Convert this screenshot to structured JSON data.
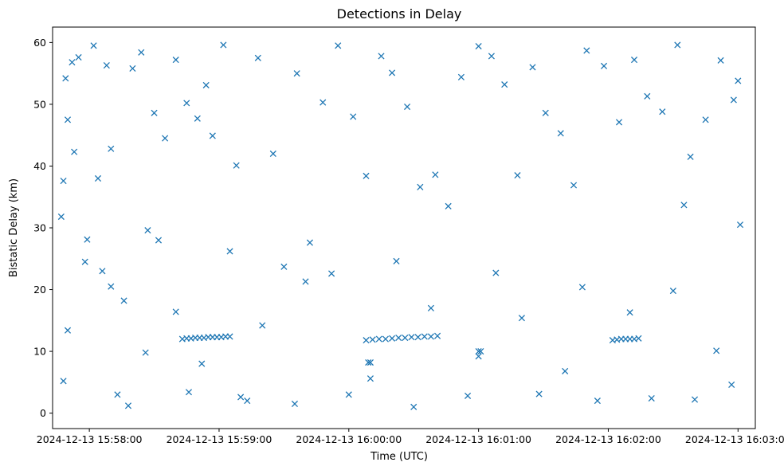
{
  "chart_data": {
    "type": "scatter",
    "title": "Detections in Delay",
    "xlabel": "Time (UTC)",
    "ylabel": "Bistatic Delay (km)",
    "x_axis_type": "datetime",
    "xlim": [
      "2024-12-13 15:57:43",
      "2024-12-13 16:03:08"
    ],
    "ylim": [
      -2.5,
      62.5
    ],
    "x_ticks": [
      "2024-12-13 15:58:00",
      "2024-12-13 15:59:00",
      "2024-12-13 16:00:00",
      "2024-12-13 16:01:00",
      "2024-12-13 16:02:00",
      "2024-12-13 16:03:00"
    ],
    "y_ticks": [
      0,
      10,
      20,
      30,
      40,
      50,
      60
    ],
    "marker": "x",
    "marker_color": "#1f77b4",
    "grid": false,
    "legend": "none",
    "series": [
      {
        "x": [
          "2024-12-13 15:57:47",
          "2024-12-13 15:57:48",
          "2024-12-13 15:57:48",
          "2024-12-13 15:57:49",
          "2024-12-13 15:57:50",
          "2024-12-13 15:57:52",
          "2024-12-13 15:57:53",
          "2024-12-13 15:57:55",
          "2024-12-13 15:57:58",
          "2024-12-13 15:57:59",
          "2024-12-13 15:58:02",
          "2024-12-13 15:58:04",
          "2024-12-13 15:58:06",
          "2024-12-13 15:58:08",
          "2024-12-13 15:58:10",
          "2024-12-13 15:58:13",
          "2024-12-13 15:58:16",
          "2024-12-13 15:58:20",
          "2024-12-13 15:58:24",
          "2024-12-13 15:58:27",
          "2024-12-13 15:58:30",
          "2024-12-13 15:58:35",
          "2024-12-13 15:58:40",
          "2024-12-13 15:58:45",
          "2024-12-13 15:58:50",
          "2024-12-13 15:58:54",
          "2024-12-13 15:58:57",
          "2024-12-13 15:59:02",
          "2024-12-13 15:59:08",
          "2024-12-13 15:59:13",
          "2024-12-13 15:59:18",
          "2024-12-13 15:59:25",
          "2024-12-13 15:59:30",
          "2024-12-13 15:59:36",
          "2024-12-13 15:59:42",
          "2024-12-13 15:59:48",
          "2024-12-13 15:59:55",
          "2024-12-13 16:00:02",
          "2024-12-13 16:00:08",
          "2024-12-13 16:00:15",
          "2024-12-13 16:00:20",
          "2024-12-13 16:00:27",
          "2024-12-13 16:00:33",
          "2024-12-13 16:00:40",
          "2024-12-13 16:00:46",
          "2024-12-13 16:00:52",
          "2024-12-13 16:01:00",
          "2024-12-13 16:01:06",
          "2024-12-13 16:01:12",
          "2024-12-13 16:01:18",
          "2024-12-13 16:01:25",
          "2024-12-13 16:01:31",
          "2024-12-13 16:01:38",
          "2024-12-13 16:01:44",
          "2024-12-13 16:01:50",
          "2024-12-13 16:01:58",
          "2024-12-13 16:02:05",
          "2024-12-13 16:02:12",
          "2024-12-13 16:02:18",
          "2024-12-13 16:02:25",
          "2024-12-13 16:02:32",
          "2024-12-13 16:02:38",
          "2024-12-13 16:02:45",
          "2024-12-13 16:02:52",
          "2024-12-13 16:02:58",
          "2024-12-13 16:03:00",
          "2024-12-13 16:03:01",
          "2024-12-13 15:58:10",
          "2024-12-13 15:58:26",
          "2024-12-13 15:58:40",
          "2024-12-13 15:58:52",
          "2024-12-13 15:59:20",
          "2024-12-13 15:59:40",
          "2024-12-13 16:00:10",
          "2024-12-13 16:00:38",
          "2024-12-13 16:01:00",
          "2024-12-13 16:01:20",
          "2024-12-13 16:01:40",
          "2024-12-13 16:02:10",
          "2024-12-13 16:02:30",
          "2024-12-13 16:02:50",
          "2024-12-13 15:57:50",
          "2024-12-13 15:58:18",
          "2024-12-13 15:58:46",
          "2024-12-13 15:59:10",
          "2024-12-13 15:59:35",
          "2024-12-13 16:00:00",
          "2024-12-13 16:00:30",
          "2024-12-13 16:00:55",
          "2024-12-13 16:01:28",
          "2024-12-13 16:01:55",
          "2024-12-13 16:02:20",
          "2024-12-13 16:02:40",
          "2024-12-13 16:02:57",
          "2024-12-13 15:58:32",
          "2024-12-13 15:59:05",
          "2024-12-13 15:59:52",
          "2024-12-13 16:00:22",
          "2024-12-13 16:01:08",
          "2024-12-13 16:01:48",
          "2024-12-13 16:02:35"
        ],
        "y": [
          31.8,
          5.2,
          37.6,
          54.2,
          47.5,
          56.8,
          42.3,
          57.6,
          24.5,
          28.1,
          59.5,
          38.0,
          23.0,
          56.3,
          42.8,
          3.0,
          18.2,
          55.8,
          58.4,
          29.6,
          48.6,
          44.5,
          57.2,
          50.2,
          47.7,
          53.1,
          44.9,
          59.6,
          40.1,
          2.0,
          57.5,
          42.0,
          23.7,
          55.0,
          27.6,
          50.3,
          59.5,
          48.0,
          38.4,
          57.8,
          55.1,
          49.6,
          36.6,
          38.6,
          33.5,
          54.4,
          59.4,
          57.8,
          53.2,
          38.5,
          56.0,
          48.6,
          45.3,
          36.9,
          58.7,
          56.2,
          47.1,
          57.2,
          51.3,
          48.8,
          59.6,
          41.5,
          47.5,
          57.1,
          50.7,
          53.8,
          30.5,
          20.5,
          9.8,
          16.4,
          8.0,
          14.2,
          21.3,
          5.6,
          17.0,
          9.2,
          15.4,
          6.8,
          16.3,
          19.8,
          10.1,
          13.4,
          1.2,
          3.4,
          2.6,
          1.5,
          3.0,
          1.0,
          2.8,
          3.1,
          2.0,
          2.4,
          2.2,
          4.6,
          28.0,
          26.2,
          22.6,
          24.6,
          22.7,
          20.4,
          33.7
        ]
      },
      {
        "x": [
          "2024-12-13 15:58:43",
          "2024-12-13 15:58:45",
          "2024-12-13 15:58:47",
          "2024-12-13 15:58:49",
          "2024-12-13 15:58:51",
          "2024-12-13 15:58:53",
          "2024-12-13 15:58:55",
          "2024-12-13 15:58:57",
          "2024-12-13 15:58:59",
          "2024-12-13 15:59:01",
          "2024-12-13 15:59:03",
          "2024-12-13 15:59:05",
          "2024-12-13 16:00:08",
          "2024-12-13 16:00:11",
          "2024-12-13 16:00:14",
          "2024-12-13 16:00:17",
          "2024-12-13 16:00:20",
          "2024-12-13 16:00:23",
          "2024-12-13 16:00:26",
          "2024-12-13 16:00:29",
          "2024-12-13 16:00:32",
          "2024-12-13 16:00:35",
          "2024-12-13 16:00:38",
          "2024-12-13 16:00:41",
          "2024-12-13 16:02:02",
          "2024-12-13 16:02:04",
          "2024-12-13 16:02:06",
          "2024-12-13 16:02:08",
          "2024-12-13 16:02:10",
          "2024-12-13 16:02:12",
          "2024-12-13 16:02:14",
          "2024-12-13 16:01:00",
          "2024-12-13 16:01:01",
          "2024-12-13 16:00:09",
          "2024-12-13 16:00:10"
        ],
        "y": [
          12.0,
          12.1,
          12.1,
          12.2,
          12.2,
          12.2,
          12.3,
          12.3,
          12.3,
          12.3,
          12.4,
          12.4,
          11.8,
          11.9,
          12.0,
          12.0,
          12.1,
          12.2,
          12.2,
          12.3,
          12.3,
          12.4,
          12.4,
          12.5,
          11.8,
          11.9,
          12.0,
          12.0,
          12.0,
          12.0,
          12.1,
          10.0,
          10.0,
          8.2,
          8.2
        ]
      }
    ]
  }
}
